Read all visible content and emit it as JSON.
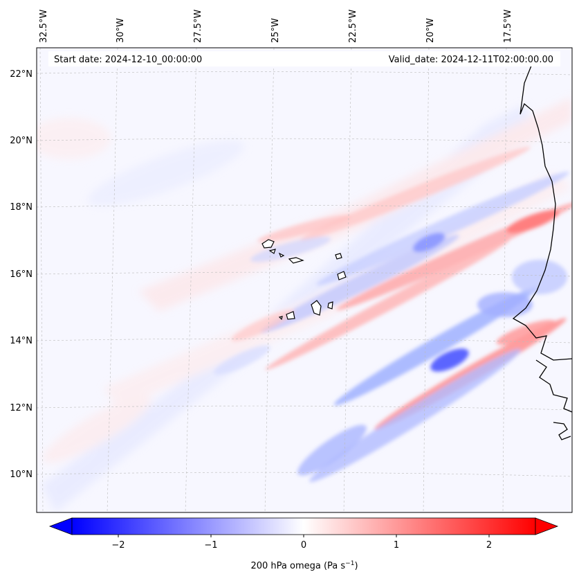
{
  "map": {
    "start_date": "Start date: 2024-12-10_00:00:00",
    "valid_date": "Valid_date: 2024-12-11T02:00:00.00",
    "lon_labels": [
      "32.5°W",
      "30°W",
      "27.5°W",
      "25°W",
      "22.5°W",
      "20°W",
      "17.5°W"
    ],
    "lat_labels": [
      "22°N",
      "20°N",
      "18°N",
      "16°N",
      "14°N",
      "12°N",
      "10°N"
    ]
  },
  "colorbar": {
    "ticks": [
      "−2",
      "−1",
      "0",
      "1",
      "2"
    ],
    "label": "200 hPa omega (Pa s",
    "label_sup": "−1",
    "label_close": ")",
    "min": -2.6,
    "max": 2.6,
    "colors": {
      "negative": "#0000ff",
      "zero": "#ffffff",
      "positive": "#ff0000"
    }
  }
}
